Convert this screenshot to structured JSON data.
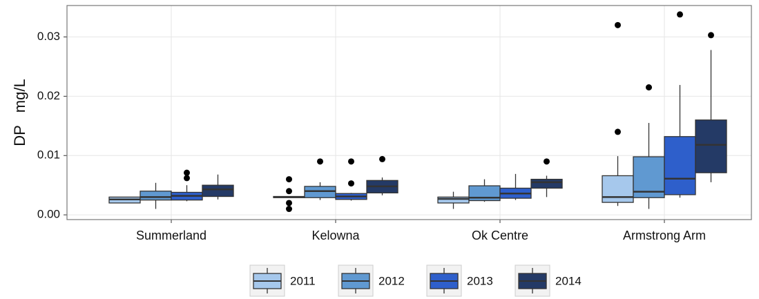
{
  "chart_data": {
    "type": "box",
    "y_label": "DP   mg/L",
    "categories": [
      "Summerland",
      "Kelowna",
      "Ok Centre",
      "Armstrong Arm"
    ],
    "ylim": [
      -0.0008,
      0.0353
    ],
    "yticks": [
      {
        "value": 0,
        "label": "0.00"
      },
      0.01,
      0.02,
      0.03
    ],
    "grid": true,
    "legend": "bottom",
    "series": [
      {
        "name": "2011",
        "color": "#a6c8ec",
        "boxes": [
          {
            "min": 0.002,
            "q1": 0.002,
            "median": 0.0026,
            "q3": 0.003,
            "max": 0.003,
            "outliers": []
          },
          {
            "min": 0.0029,
            "q1": 0.0029,
            "median": 0.003,
            "q3": 0.0031,
            "max": 0.0031,
            "outliers": [
              0.006,
              0.004,
              0.002,
              0.001
            ]
          },
          {
            "min": 0.001,
            "q1": 0.002,
            "median": 0.0027,
            "q3": 0.003,
            "max": 0.0039,
            "outliers": []
          },
          {
            "min": 0.0015,
            "q1": 0.0021,
            "median": 0.003,
            "q3": 0.0066,
            "max": 0.0099,
            "outliers": [
              0.014,
              0.032
            ]
          }
        ]
      },
      {
        "name": "2012",
        "color": "#6099d1",
        "boxes": [
          {
            "min": 0.001,
            "q1": 0.0025,
            "median": 0.003,
            "q3": 0.004,
            "max": 0.0054,
            "outliers": []
          },
          {
            "min": 0.0025,
            "q1": 0.0029,
            "median": 0.004,
            "q3": 0.0048,
            "max": 0.0055,
            "outliers": [
              0.009
            ]
          },
          {
            "min": 0.0022,
            "q1": 0.0024,
            "median": 0.0029,
            "q3": 0.0049,
            "max": 0.006,
            "outliers": []
          },
          {
            "min": 0.001,
            "q1": 0.0029,
            "median": 0.0039,
            "q3": 0.0098,
            "max": 0.0155,
            "outliers": [
              0.0215
            ]
          }
        ]
      },
      {
        "name": "2013",
        "color": "#2e5fcb",
        "boxes": [
          {
            "min": 0.0023,
            "q1": 0.0025,
            "median": 0.0032,
            "q3": 0.0038,
            "max": 0.005,
            "outliers": [
              0.0062,
              0.0071
            ]
          },
          {
            "min": 0.0024,
            "q1": 0.0026,
            "median": 0.0031,
            "q3": 0.0036,
            "max": 0.0037,
            "outliers": [
              0.0053,
              0.009
            ]
          },
          {
            "min": 0.0025,
            "q1": 0.0028,
            "median": 0.0036,
            "q3": 0.0045,
            "max": 0.0069,
            "outliers": []
          },
          {
            "min": 0.0029,
            "q1": 0.0034,
            "median": 0.0061,
            "q3": 0.0132,
            "max": 0.0219,
            "outliers": [
              0.0338
            ]
          }
        ]
      },
      {
        "name": "2014",
        "color": "#243a66",
        "boxes": [
          {
            "min": 0.0026,
            "q1": 0.0031,
            "median": 0.0043,
            "q3": 0.005,
            "max": 0.0068,
            "outliers": []
          },
          {
            "min": 0.0033,
            "q1": 0.0037,
            "median": 0.0048,
            "q3": 0.0058,
            "max": 0.0063,
            "outliers": [
              0.0094
            ]
          },
          {
            "min": 0.003,
            "q1": 0.0045,
            "median": 0.0055,
            "q3": 0.006,
            "max": 0.0066,
            "outliers": [
              0.009
            ]
          },
          {
            "min": 0.0055,
            "q1": 0.0071,
            "median": 0.0118,
            "q3": 0.016,
            "max": 0.0278,
            "outliers": [
              0.0303
            ]
          }
        ]
      }
    ]
  }
}
